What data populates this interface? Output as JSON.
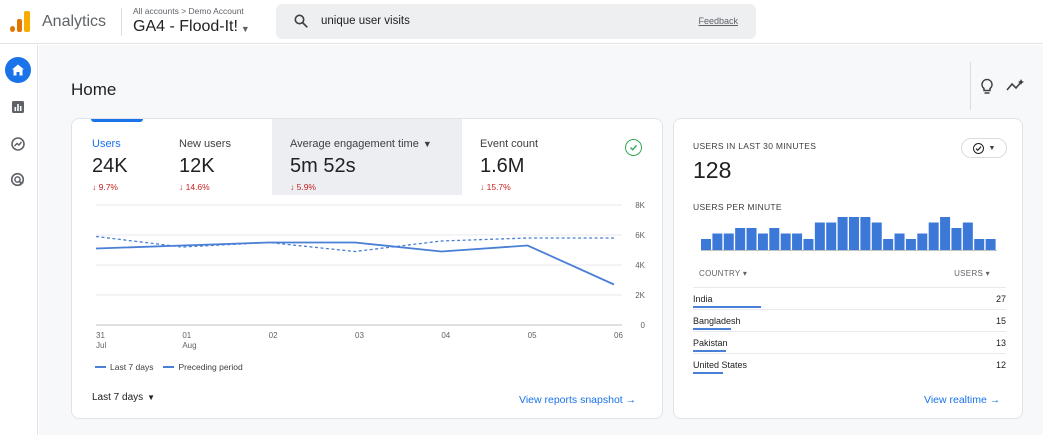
{
  "header": {
    "app_name": "Analytics",
    "breadcrumb": "All accounts > Demo Account",
    "property_name": "GA4 - Flood-It!",
    "search_query": "unique user visits",
    "feedback_label": "Feedback"
  },
  "page": {
    "title": "Home"
  },
  "metrics": [
    {
      "label": "Users",
      "value": "24K",
      "delta": "↓ 9.7%"
    },
    {
      "label": "New users",
      "value": "12K",
      "delta": "↓ 14.6%"
    },
    {
      "label": "Average engagement time",
      "value": "5m 52s",
      "delta": "↓ 5.9%"
    },
    {
      "label": "Event count",
      "value": "1.6M",
      "delta": "↓ 15.7%"
    }
  ],
  "chart_data": {
    "type": "line",
    "x": [
      "31 Jul",
      "01 Aug",
      "02",
      "03",
      "04",
      "05",
      "06"
    ],
    "x_ticks": [
      {
        "day": "31",
        "month": "Jul"
      },
      {
        "day": "01",
        "month": "Aug"
      },
      {
        "day": "02",
        "month": ""
      },
      {
        "day": "03",
        "month": ""
      },
      {
        "day": "04",
        "month": ""
      },
      {
        "day": "05",
        "month": ""
      },
      {
        "day": "06",
        "month": ""
      }
    ],
    "series": [
      {
        "name": "Last 7 days",
        "values": [
          5.1,
          5.3,
          5.5,
          5.5,
          4.9,
          5.3,
          2.7
        ],
        "style": "solid"
      },
      {
        "name": "Preceding period",
        "values": [
          5.9,
          5.2,
          5.5,
          4.9,
          5.6,
          5.8,
          5.8
        ],
        "style": "dashed"
      }
    ],
    "y_ticks": [
      "8K",
      "6K",
      "4K",
      "2K",
      "0"
    ],
    "y_tick_values": [
      8,
      6,
      4,
      2,
      0
    ],
    "y_unit": "thousands",
    "ylim": [
      0,
      8
    ],
    "grid": true,
    "legend_position": "bottom-left",
    "color": "#4a7fd6"
  },
  "main_card": {
    "date_range": "Last 7 days",
    "link_label": "View reports snapshot →"
  },
  "realtime": {
    "title": "USERS IN LAST 30 MINUTES",
    "value": "128",
    "subtitle": "USERS PER MINUTE",
    "minute_bars": [
      2,
      3,
      3,
      4,
      4,
      3,
      4,
      3,
      3,
      2,
      5,
      5,
      6,
      6,
      6,
      5,
      2,
      3,
      2,
      3,
      5,
      6,
      4,
      5,
      2,
      2
    ],
    "col_country": "COUNTRY ▾",
    "col_users": "USERS ▾",
    "countries": [
      {
        "name": "India",
        "users": "27",
        "share": 1.0
      },
      {
        "name": "Bangladesh",
        "users": "15",
        "share": 0.56
      },
      {
        "name": "Pakistan",
        "users": "13",
        "share": 0.48
      },
      {
        "name": "United States",
        "users": "12",
        "share": 0.44
      }
    ],
    "link_label": "View realtime →"
  },
  "colors": {
    "accent": "#1a73e8",
    "negative": "#c5221f",
    "positive": "#34a853",
    "chart_line": "#4a7fd6",
    "logo": "#f9ab00"
  },
  "icons": {
    "rail": [
      "home-icon",
      "reports-icon",
      "explore-icon",
      "advertising-icon"
    ],
    "header": [
      "analytics-logo-icon",
      "search-icon"
    ],
    "title_bar": [
      "lightbulb-icon",
      "insights-icon"
    ]
  }
}
